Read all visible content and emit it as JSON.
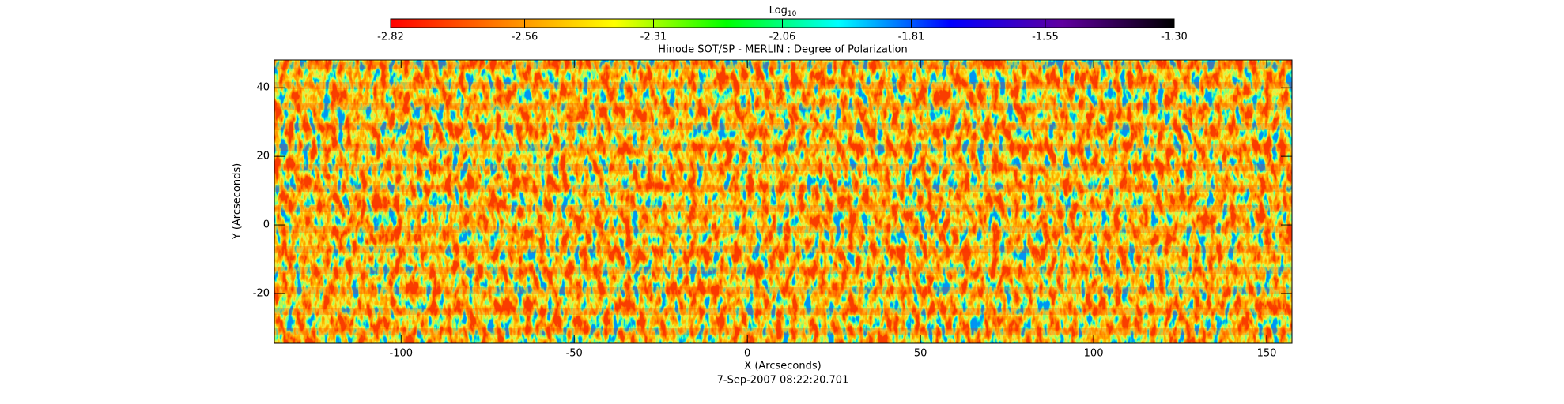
{
  "chart_data": {
    "type": "heatmap",
    "title": "Hinode SOT/SP - MERLIN : Degree of Polarization",
    "xlabel": "X (Arcseconds)",
    "ylabel": "Y (Arcseconds)",
    "footer": "7-Sep-2007 08:22:20.701",
    "colorbar_label": "Log",
    "colorbar_label_sub": "10",
    "colorbar_lim": [
      -2.82,
      -1.3
    ],
    "colorbar_ticks": [
      -2.82,
      -2.56,
      -2.31,
      -2.06,
      -1.81,
      -1.55,
      {
        "value": -1.3,
        "label": "-1.30"
      }
    ],
    "colormap": [
      "#ff0000",
      "#ff8000",
      "#ffff00",
      "#00ff00",
      "#00ffff",
      "#0000ff",
      "#6000a0",
      "#000000"
    ],
    "xlim": [
      -136.6,
      157.3
    ],
    "xticks": [
      -100,
      -50,
      0,
      50,
      100,
      150
    ],
    "ylim": [
      -34.5,
      48.1
    ],
    "yticks": [
      -20,
      0,
      20,
      40
    ]
  }
}
